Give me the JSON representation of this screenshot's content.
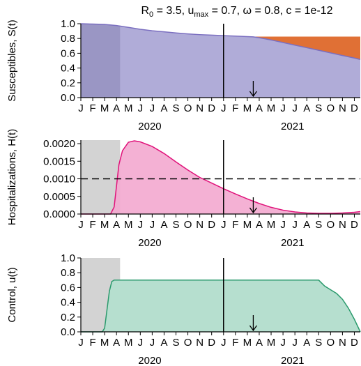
{
  "title_parts": {
    "r0_sym": "R",
    "r0_sub": "0",
    "r0_val": " = 3.5, u",
    "umax_sub": "max",
    "rest": " = 0.7, ω = 0.8, c = 1e-12"
  },
  "month_ticks": [
    "J",
    "F",
    "M",
    "A",
    "M",
    "J",
    "J",
    "A",
    "S",
    "O",
    "N",
    "D",
    "J",
    "F",
    "M",
    "A",
    "M",
    "J",
    "J",
    "A",
    "S",
    "O",
    "N",
    "D"
  ],
  "year_labels": [
    "2020",
    "2021"
  ],
  "colors": {
    "susceptible": "#b0acd8",
    "susceptible_line": "#7b6fc0",
    "early_shade": "#9a96c4",
    "orange": "#e07035",
    "hospital_fill": "#f3a8cf",
    "hospital_line": "#e0127a",
    "control_fill": "#b6dfcf",
    "control_line": "#2a9a6c",
    "gray": "#d3d3d3"
  },
  "chart_data": [
    {
      "type": "area",
      "ylabel": "Susceptibles, S(t)",
      "ylim": [
        0,
        1
      ],
      "yticks": [
        "0.0",
        "0.2",
        "0.4",
        "0.6",
        "0.8",
        "1.0"
      ],
      "ytick_values": [
        0,
        0.2,
        0.4,
        0.6,
        0.8,
        1.0
      ],
      "x_months": [
        0,
        1,
        2,
        3,
        4,
        5,
        6,
        7,
        8,
        9,
        10,
        11,
        12,
        13,
        14,
        14.5,
        15,
        16,
        17,
        18,
        19,
        20,
        21,
        22,
        23,
        23.5
      ],
      "series": [
        {
          "values": [
            1.0,
            0.995,
            0.99,
            0.975,
            0.95,
            0.925,
            0.905,
            0.89,
            0.875,
            0.862,
            0.852,
            0.845,
            0.838,
            0.832,
            0.826,
            0.822,
            0.81,
            0.78,
            0.745,
            0.71,
            0.675,
            0.64,
            0.605,
            0.57,
            0.535,
            0.515
          ]
        }
      ],
      "uncontrolled_level": 0.825,
      "orange_start_month": 14.5,
      "shaded_until_month": 3.3,
      "vline_month": 12,
      "arrow_month": 14.5
    },
    {
      "type": "area",
      "ylabel": "Hospitalizations, H(t)",
      "ylim": [
        0,
        0.0021
      ],
      "yticks": [
        "0.0000",
        "0.0005",
        "0.0010",
        "0.0015",
        "0.0020"
      ],
      "ytick_values": [
        0,
        0.0005,
        0.001,
        0.0015,
        0.002
      ],
      "threshold": 0.001,
      "x_months": [
        0,
        2.5,
        2.8,
        3.0,
        3.2,
        3.5,
        4.0,
        4.5,
        5,
        6,
        7,
        8,
        9,
        10,
        11,
        12,
        13,
        14,
        15,
        16,
        17,
        18,
        19,
        20,
        21,
        22,
        23,
        23.5
      ],
      "series": [
        {
          "values": [
            0.0,
            0.0,
            0.0002,
            0.0008,
            0.0014,
            0.0018,
            0.00204,
            0.00208,
            0.00205,
            0.00192,
            0.00172,
            0.00148,
            0.00125,
            0.00104,
            0.00088,
            0.00072,
            0.00057,
            0.00043,
            0.0003,
            0.00019,
            0.00011,
            6e-05,
            3e-05,
            2e-05,
            2e-05,
            3e-05,
            5e-05,
            7e-05
          ]
        }
      ],
      "gray_until_month": 3.3,
      "vline_month": 12,
      "arrow_month": 14.5
    },
    {
      "type": "area",
      "ylabel": "Control, u(t)",
      "ylim": [
        0,
        1
      ],
      "yticks": [
        "0.0",
        "0.2",
        "0.4",
        "0.6",
        "0.8",
        "1.0"
      ],
      "ytick_values": [
        0,
        0.2,
        0.4,
        0.6,
        0.8,
        1.0
      ],
      "x_months": [
        0,
        1.8,
        2.0,
        2.2,
        2.4,
        2.6,
        2.8,
        3.0,
        20.0,
        20.5,
        21.0,
        21.5,
        22.0,
        22.5,
        23.0,
        23.5
      ],
      "series": [
        {
          "values": [
            0.0,
            0.0,
            0.05,
            0.3,
            0.55,
            0.68,
            0.7,
            0.7,
            0.7,
            0.62,
            0.57,
            0.52,
            0.44,
            0.32,
            0.17,
            0.0
          ]
        }
      ],
      "gray_until_month": 3.3,
      "vline_month": 12,
      "arrow_month": 14.5
    }
  ]
}
